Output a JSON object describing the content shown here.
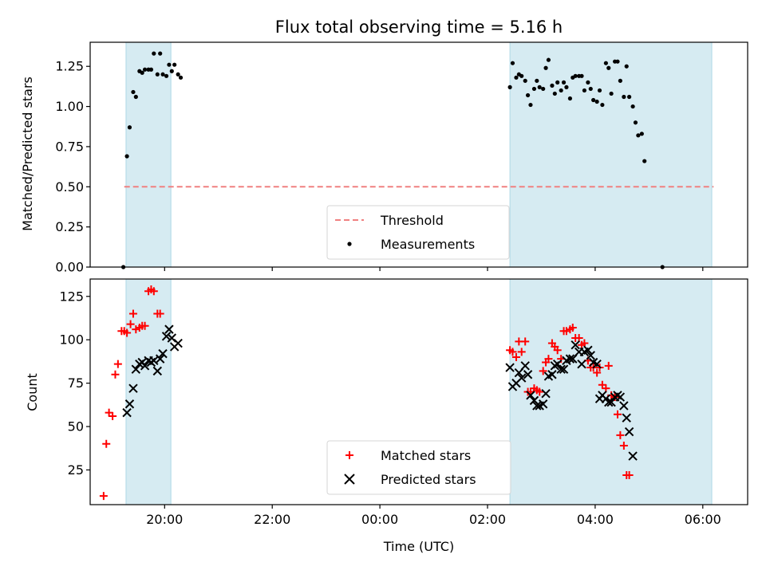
{
  "chart_data": [
    {
      "type": "scatter",
      "title": "Flux total observing time = 5.16 h",
      "ylabel": "Matched/Predicted stars",
      "xlabel": "",
      "xlim": [
        "18:37",
        "06:50"
      ],
      "ylim": [
        0,
        1.4
      ],
      "yticks": [
        "0.00",
        "0.25",
        "0.50",
        "0.75",
        "1.00",
        "1.25"
      ],
      "shaded_intervals": [
        [
          "19:17",
          "20:07"
        ],
        [
          "02:25",
          "06:10"
        ]
      ],
      "shade_color": "#add8e6",
      "legend": {
        "placement": "lower-center"
      },
      "series": [
        {
          "name": "Threshold",
          "kind": "dashed-line",
          "color": "#f08080",
          "y": 0.5,
          "x_range": [
            "19:15",
            "06:12"
          ]
        },
        {
          "name": "Measurements",
          "kind": "dots",
          "color": "#000000",
          "points": [
            [
              "19:14",
              0.0
            ],
            [
              "19:18",
              0.69
            ],
            [
              "19:21",
              0.87
            ],
            [
              "19:25",
              1.09
            ],
            [
              "19:28",
              1.06
            ],
            [
              "19:32",
              1.22
            ],
            [
              "19:35",
              1.21
            ],
            [
              "19:38",
              1.23
            ],
            [
              "19:42",
              1.23
            ],
            [
              "19:45",
              1.23
            ],
            [
              "19:48",
              1.33
            ],
            [
              "19:52",
              1.2
            ],
            [
              "19:55",
              1.33
            ],
            [
              "19:58",
              1.2
            ],
            [
              "20:02",
              1.19
            ],
            [
              "20:05",
              1.26
            ],
            [
              "20:08",
              1.22
            ],
            [
              "20:11",
              1.26
            ],
            [
              "20:15",
              1.2
            ],
            [
              "20:18",
              1.18
            ],
            [
              "02:25",
              1.12
            ],
            [
              "02:28",
              1.27
            ],
            [
              "02:32",
              1.18
            ],
            [
              "02:35",
              1.2
            ],
            [
              "02:38",
              1.19
            ],
            [
              "02:42",
              1.16
            ],
            [
              "02:45",
              1.07
            ],
            [
              "02:48",
              1.01
            ],
            [
              "02:52",
              1.11
            ],
            [
              "02:55",
              1.16
            ],
            [
              "02:58",
              1.12
            ],
            [
              "03:02",
              1.11
            ],
            [
              "03:05",
              1.24
            ],
            [
              "03:08",
              1.29
            ],
            [
              "03:12",
              1.13
            ],
            [
              "03:15",
              1.08
            ],
            [
              "03:18",
              1.15
            ],
            [
              "03:22",
              1.1
            ],
            [
              "03:25",
              1.15
            ],
            [
              "03:28",
              1.12
            ],
            [
              "03:32",
              1.05
            ],
            [
              "03:35",
              1.18
            ],
            [
              "03:38",
              1.19
            ],
            [
              "03:42",
              1.19
            ],
            [
              "03:45",
              1.19
            ],
            [
              "03:48",
              1.1
            ],
            [
              "03:52",
              1.15
            ],
            [
              "03:55",
              1.11
            ],
            [
              "03:58",
              1.04
            ],
            [
              "04:02",
              1.03
            ],
            [
              "04:05",
              1.1
            ],
            [
              "04:08",
              1.01
            ],
            [
              "04:12",
              1.27
            ],
            [
              "04:15",
              1.24
            ],
            [
              "04:18",
              1.08
            ],
            [
              "04:22",
              1.28
            ],
            [
              "04:25",
              1.28
            ],
            [
              "04:28",
              1.16
            ],
            [
              "04:32",
              1.06
            ],
            [
              "04:35",
              1.25
            ],
            [
              "04:38",
              1.06
            ],
            [
              "04:42",
              1.0
            ],
            [
              "04:45",
              0.9
            ],
            [
              "04:48",
              0.82
            ],
            [
              "04:52",
              0.83
            ],
            [
              "04:55",
              0.66
            ],
            [
              "05:15",
              0.0
            ]
          ]
        }
      ]
    },
    {
      "type": "scatter",
      "title": "",
      "xlabel": "Time (UTC)",
      "ylabel": "Count",
      "xlim": [
        "18:37",
        "06:50"
      ],
      "ylim": [
        5,
        135
      ],
      "yticks": [
        "25",
        "50",
        "75",
        "100",
        "125"
      ],
      "xticks": [
        "20:00",
        "22:00",
        "00:00",
        "02:00",
        "04:00",
        "06:00"
      ],
      "shaded_intervals": [
        [
          "19:17",
          "20:07"
        ],
        [
          "02:25",
          "06:10"
        ]
      ],
      "legend": {
        "placement": "lower-center"
      },
      "series": [
        {
          "name": "Matched stars",
          "kind": "plus",
          "color": "#ff0000",
          "points": [
            [
              "18:52",
              10
            ],
            [
              "18:55",
              40
            ],
            [
              "18:58",
              58
            ],
            [
              "19:02",
              56
            ],
            [
              "19:05",
              80
            ],
            [
              "19:08",
              86
            ],
            [
              "19:12",
              105
            ],
            [
              "19:15",
              105
            ],
            [
              "19:18",
              104
            ],
            [
              "19:22",
              109
            ],
            [
              "19:25",
              115
            ],
            [
              "19:28",
              106
            ],
            [
              "19:32",
              107
            ],
            [
              "19:35",
              108
            ],
            [
              "19:38",
              108
            ],
            [
              "19:42",
              128
            ],
            [
              "19:45",
              129
            ],
            [
              "19:48",
              128
            ],
            [
              "19:52",
              115
            ],
            [
              "19:55",
              115
            ],
            [
              "02:25",
              94
            ],
            [
              "02:28",
              93
            ],
            [
              "02:32",
              90
            ],
            [
              "02:35",
              99
            ],
            [
              "02:38",
              93
            ],
            [
              "02:42",
              99
            ],
            [
              "02:45",
              70
            ],
            [
              "02:48",
              70
            ],
            [
              "02:52",
              72
            ],
            [
              "02:55",
              71
            ],
            [
              "02:58",
              70
            ],
            [
              "03:02",
              82
            ],
            [
              "03:05",
              87
            ],
            [
              "03:08",
              89
            ],
            [
              "03:12",
              98
            ],
            [
              "03:15",
              96
            ],
            [
              "03:18",
              94
            ],
            [
              "03:22",
              89
            ],
            [
              "03:25",
              105
            ],
            [
              "03:28",
              105
            ],
            [
              "03:32",
              106
            ],
            [
              "03:35",
              107
            ],
            [
              "03:38",
              101
            ],
            [
              "03:42",
              101
            ],
            [
              "03:45",
              97
            ],
            [
              "03:48",
              98
            ],
            [
              "03:52",
              88
            ],
            [
              "03:55",
              84
            ],
            [
              "03:58",
              84
            ],
            [
              "04:02",
              81
            ],
            [
              "04:05",
              84
            ],
            [
              "04:08",
              74
            ],
            [
              "04:12",
              72
            ],
            [
              "04:15",
              85
            ],
            [
              "04:18",
              68
            ],
            [
              "04:22",
              67
            ],
            [
              "04:25",
              57
            ],
            [
              "04:28",
              45
            ],
            [
              "04:32",
              39
            ],
            [
              "04:35",
              22
            ],
            [
              "04:38",
              22
            ]
          ]
        },
        {
          "name": "Predicted stars",
          "kind": "cross",
          "color": "#000000",
          "points": [
            [
              "19:18",
              58
            ],
            [
              "19:21",
              63
            ],
            [
              "19:25",
              72
            ],
            [
              "19:28",
              83
            ],
            [
              "19:32",
              86
            ],
            [
              "19:35",
              87
            ],
            [
              "19:38",
              85
            ],
            [
              "19:42",
              88
            ],
            [
              "19:45",
              87
            ],
            [
              "19:48",
              88
            ],
            [
              "19:52",
              82
            ],
            [
              "19:55",
              89
            ],
            [
              "19:58",
              92
            ],
            [
              "20:02",
              102
            ],
            [
              "20:05",
              106
            ],
            [
              "20:08",
              101
            ],
            [
              "20:11",
              96
            ],
            [
              "20:15",
              98
            ],
            [
              "02:25",
              84
            ],
            [
              "02:28",
              73
            ],
            [
              "02:32",
              75
            ],
            [
              "02:35",
              81
            ],
            [
              "02:38",
              78
            ],
            [
              "02:42",
              85
            ],
            [
              "02:45",
              80
            ],
            [
              "02:48",
              68
            ],
            [
              "02:52",
              65
            ],
            [
              "02:55",
              62
            ],
            [
              "02:58",
              62
            ],
            [
              "03:02",
              63
            ],
            [
              "03:05",
              69
            ],
            [
              "03:08",
              79
            ],
            [
              "03:12",
              80
            ],
            [
              "03:15",
              85
            ],
            [
              "03:18",
              86
            ],
            [
              "03:22",
              83
            ],
            [
              "03:25",
              83
            ],
            [
              "03:28",
              88
            ],
            [
              "03:32",
              89
            ],
            [
              "03:35",
              89
            ],
            [
              "03:38",
              97
            ],
            [
              "03:42",
              93
            ],
            [
              "03:45",
              86
            ],
            [
              "03:48",
              93
            ],
            [
              "03:52",
              94
            ],
            [
              "03:55",
              91
            ],
            [
              "03:58",
              87
            ],
            [
              "04:02",
              86
            ],
            [
              "04:05",
              66
            ],
            [
              "04:08",
              68
            ],
            [
              "04:12",
              66
            ],
            [
              "04:15",
              64
            ],
            [
              "04:18",
              64
            ],
            [
              "04:22",
              67
            ],
            [
              "04:25",
              68
            ],
            [
              "04:28",
              67
            ],
            [
              "04:32",
              62
            ],
            [
              "04:35",
              55
            ],
            [
              "04:38",
              47
            ],
            [
              "04:42",
              33
            ]
          ]
        }
      ]
    }
  ]
}
